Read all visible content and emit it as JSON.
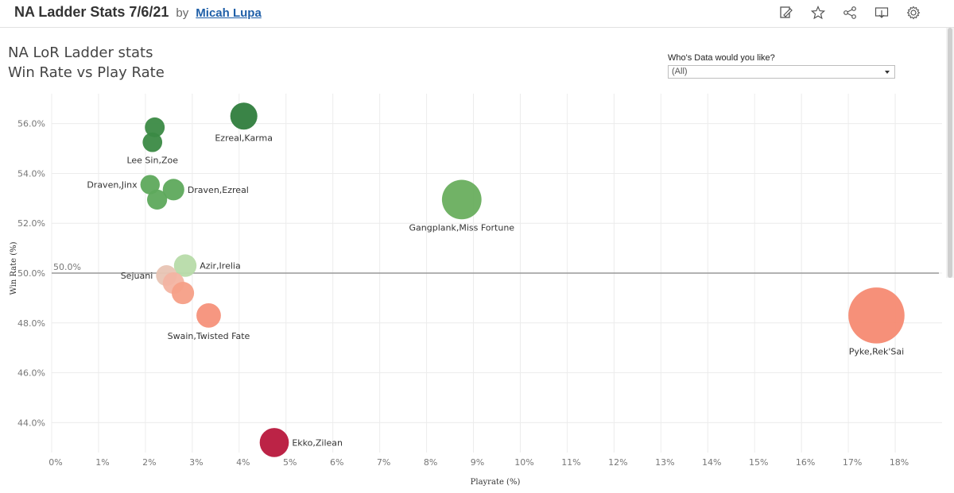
{
  "header": {
    "title": "NA Ladder Stats 7/6/21",
    "by": "by",
    "author": "Micah Lupa",
    "icons": [
      "edit-icon",
      "star-icon",
      "share-icon",
      "download-icon",
      "settings-icon"
    ]
  },
  "chart_title": {
    "line1": "NA LoR Ladder stats",
    "line2": "Win Rate vs Play Rate"
  },
  "filter": {
    "label": "Who's Data would you like?",
    "value": "(All)"
  },
  "chart_data": {
    "type": "scatter",
    "xlabel": "Playrate (%)",
    "ylabel": "Win Rate (%)",
    "xlim": [
      0,
      19
    ],
    "ylim": [
      42.8,
      57.2
    ],
    "x_ticks": [
      "0%",
      "1%",
      "2%",
      "3%",
      "4%",
      "5%",
      "6%",
      "7%",
      "8%",
      "9%",
      "10%",
      "11%",
      "12%",
      "13%",
      "14%",
      "15%",
      "16%",
      "17%",
      "18%"
    ],
    "x_tick_values": [
      0,
      1,
      2,
      3,
      4,
      5,
      6,
      7,
      8,
      9,
      10,
      11,
      12,
      13,
      14,
      15,
      16,
      17,
      18
    ],
    "y_ticks": [
      "44.0%",
      "46.0%",
      "48.0%",
      "50.0%",
      "52.0%",
      "54.0%",
      "56.0%"
    ],
    "y_tick_values": [
      44,
      46,
      48,
      50,
      52,
      54,
      56
    ],
    "grid": true,
    "reference_line": {
      "value": 50.0,
      "label": "50.0%"
    },
    "points": [
      {
        "label": "Ezreal,Karma",
        "x": 4.1,
        "y": 56.3,
        "size": 4.1,
        "color": "#2f7d3d"
      },
      {
        "label": "",
        "x": 2.2,
        "y": 55.85,
        "size": 2.2,
        "color": "#3b8a45"
      },
      {
        "label": "Lee Sin,Zoe",
        "x": 2.15,
        "y": 55.25,
        "size": 2.15,
        "color": "#3b8a45"
      },
      {
        "label": "Draven,Jinx",
        "x": 2.1,
        "y": 53.55,
        "size": 2.1,
        "color": "#5ea95c"
      },
      {
        "label": "Draven,Ezreal",
        "x": 2.6,
        "y": 53.35,
        "size": 2.6,
        "color": "#5ea95c"
      },
      {
        "label": "",
        "x": 2.25,
        "y": 52.95,
        "size": 2.25,
        "color": "#5ea95c"
      },
      {
        "label": "Gangplank,Miss Fortune",
        "x": 8.75,
        "y": 52.95,
        "size": 8.75,
        "color": "#69ae5e"
      },
      {
        "label": "Azir,Irelia",
        "x": 2.85,
        "y": 50.3,
        "size": 2.85,
        "color": "#b7dba9"
      },
      {
        "label": "Sejuani",
        "x": 2.45,
        "y": 49.9,
        "size": 2.45,
        "color": "#e8c4b4"
      },
      {
        "label": "",
        "x": 2.6,
        "y": 49.6,
        "size": 2.6,
        "color": "#f3b4a2"
      },
      {
        "label": "",
        "x": 2.8,
        "y": 49.2,
        "size": 2.8,
        "color": "#f59f87"
      },
      {
        "label": "Swain,Twisted Fate",
        "x": 3.35,
        "y": 48.3,
        "size": 3.35,
        "color": "#f6917a"
      },
      {
        "label": "Pyke,Rek'Sai",
        "x": 17.6,
        "y": 48.3,
        "size": 17.6,
        "color": "#f68a72"
      },
      {
        "label": "Ekko,Zilean",
        "x": 4.75,
        "y": 43.2,
        "size": 4.75,
        "color": "#b8173c"
      }
    ]
  }
}
